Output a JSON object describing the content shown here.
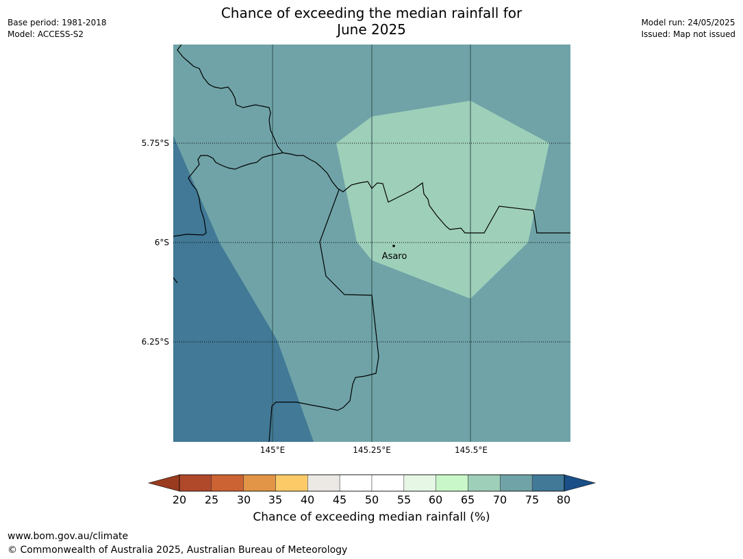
{
  "title": {
    "line1": "Chance of exceeding the median rainfall for",
    "line2": "June 2025"
  },
  "meta_left": {
    "base_period": "Base period: 1981-2018",
    "model": "Model: ACCESS-S2"
  },
  "meta_right": {
    "model_run": "Model run: 24/05/2025",
    "issued": "Issued: Map not issued"
  },
  "map": {
    "place": {
      "name": "Asaro"
    },
    "lat_labels": [
      "5.75°S",
      "6°S",
      "6.25°S"
    ],
    "lon_labels": [
      "145°E",
      "145.25°E",
      "145.5°E"
    ],
    "zone_colors": {
      "r60_65": "#c9f7c9",
      "r65_70": "#9ecfb9",
      "r70_75": "#6fa3a7",
      "r75_80": "#417996"
    }
  },
  "colorbar": {
    "title": "Chance of exceeding median rainfall (%)",
    "ticks": [
      "20",
      "25",
      "30",
      "35",
      "40",
      "45",
      "50",
      "55",
      "60",
      "65",
      "70",
      "75",
      "80"
    ],
    "under_color": "#9a3b1f",
    "over_color": "#1a4f87",
    "colors": [
      "#b0482a",
      "#cc6333",
      "#e29447",
      "#fcca67",
      "#ece8e4",
      "#ffffff",
      "#ffffff",
      "#e6f7e6",
      "#c9f7c9",
      "#9ecfb9",
      "#6fa3a7",
      "#417996"
    ]
  },
  "footer": {
    "url": "www.bom.gov.au/climate",
    "copyright": "© Commonwealth of Australia 2025, Australian Bureau of Meteorology"
  }
}
